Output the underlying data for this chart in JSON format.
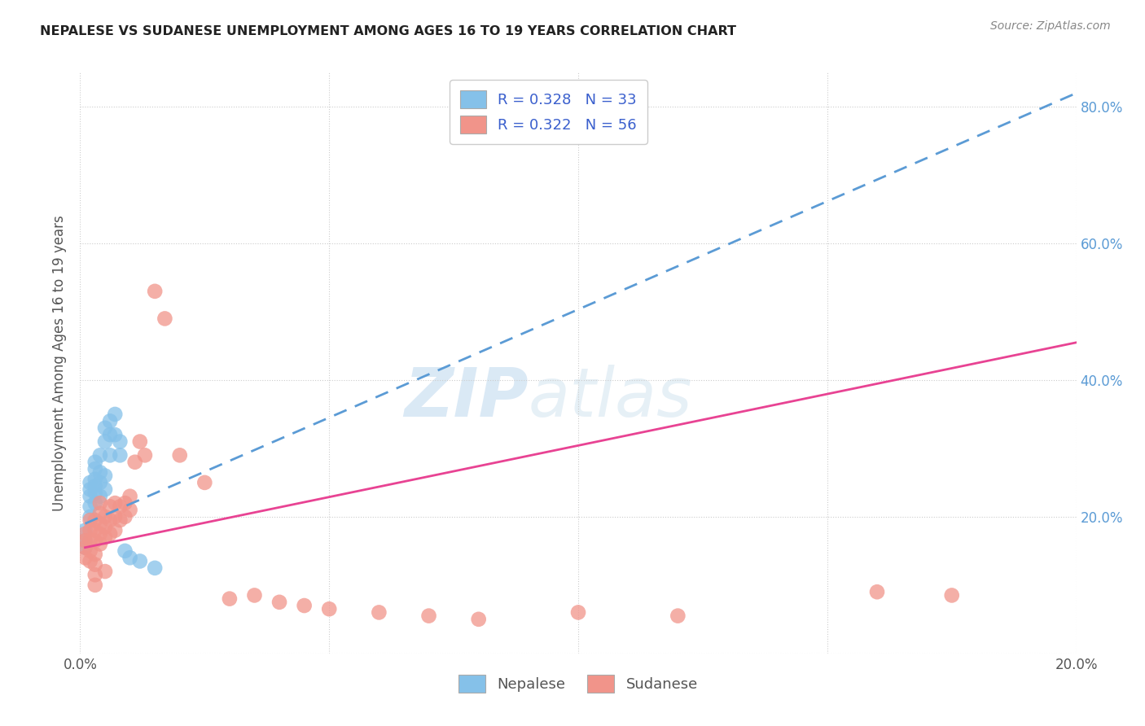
{
  "title": "NEPALESE VS SUDANESE UNEMPLOYMENT AMONG AGES 16 TO 19 YEARS CORRELATION CHART",
  "source": "Source: ZipAtlas.com",
  "ylabel": "Unemployment Among Ages 16 to 19 years",
  "xlim": [
    0.0,
    0.2
  ],
  "ylim": [
    0.0,
    0.85
  ],
  "xticks": [
    0.0,
    0.05,
    0.1,
    0.15,
    0.2
  ],
  "yticks": [
    0.0,
    0.2,
    0.4,
    0.6,
    0.8
  ],
  "xticklabels": [
    "0.0%",
    "",
    "",
    "",
    "20.0%"
  ],
  "yticklabels_right": [
    "",
    "20.0%",
    "40.0%",
    "60.0%",
    "80.0%"
  ],
  "nepalese_color": "#85C1E9",
  "sudanese_color": "#F1948A",
  "nepalese_line_color": "#5B9BD5",
  "sudanese_line_color": "#E84393",
  "background_color": "#FFFFFF",
  "legend_R_nepalese": "0.328",
  "legend_N_nepalese": "33",
  "legend_R_sudanese": "0.322",
  "legend_N_sudanese": "56",
  "watermark_zip": "ZIP",
  "watermark_atlas": "atlas",
  "nepalese_x": [
    0.001,
    0.001,
    0.001,
    0.002,
    0.002,
    0.002,
    0.002,
    0.002,
    0.003,
    0.003,
    0.003,
    0.003,
    0.003,
    0.003,
    0.004,
    0.004,
    0.004,
    0.004,
    0.005,
    0.005,
    0.005,
    0.005,
    0.006,
    0.006,
    0.006,
    0.007,
    0.007,
    0.008,
    0.008,
    0.009,
    0.01,
    0.012,
    0.015
  ],
  "nepalese_y": [
    0.18,
    0.165,
    0.155,
    0.2,
    0.215,
    0.23,
    0.24,
    0.25,
    0.22,
    0.235,
    0.245,
    0.255,
    0.27,
    0.28,
    0.23,
    0.25,
    0.265,
    0.29,
    0.24,
    0.26,
    0.31,
    0.33,
    0.29,
    0.32,
    0.34,
    0.32,
    0.35,
    0.29,
    0.31,
    0.15,
    0.14,
    0.135,
    0.125
  ],
  "sudanese_x": [
    0.001,
    0.001,
    0.001,
    0.001,
    0.002,
    0.002,
    0.002,
    0.002,
    0.002,
    0.003,
    0.003,
    0.003,
    0.003,
    0.003,
    0.003,
    0.003,
    0.004,
    0.004,
    0.004,
    0.004,
    0.004,
    0.005,
    0.005,
    0.005,
    0.005,
    0.006,
    0.006,
    0.006,
    0.007,
    0.007,
    0.007,
    0.008,
    0.008,
    0.009,
    0.009,
    0.01,
    0.01,
    0.011,
    0.012,
    0.013,
    0.015,
    0.017,
    0.02,
    0.025,
    0.03,
    0.035,
    0.04,
    0.045,
    0.05,
    0.06,
    0.07,
    0.08,
    0.1,
    0.12,
    0.16,
    0.175
  ],
  "sudanese_y": [
    0.155,
    0.165,
    0.175,
    0.14,
    0.15,
    0.165,
    0.18,
    0.195,
    0.135,
    0.145,
    0.165,
    0.18,
    0.195,
    0.13,
    0.115,
    0.1,
    0.16,
    0.175,
    0.19,
    0.205,
    0.22,
    0.17,
    0.185,
    0.2,
    0.12,
    0.175,
    0.195,
    0.215,
    0.18,
    0.2,
    0.22,
    0.195,
    0.215,
    0.2,
    0.22,
    0.21,
    0.23,
    0.28,
    0.31,
    0.29,
    0.53,
    0.49,
    0.29,
    0.25,
    0.08,
    0.085,
    0.075,
    0.07,
    0.065,
    0.06,
    0.055,
    0.05,
    0.06,
    0.055,
    0.09,
    0.085
  ],
  "nep_line_x": [
    0.001,
    0.2
  ],
  "nep_line_y": [
    0.19,
    0.82
  ],
  "sud_line_x": [
    0.001,
    0.2
  ],
  "sud_line_y": [
    0.155,
    0.455
  ]
}
